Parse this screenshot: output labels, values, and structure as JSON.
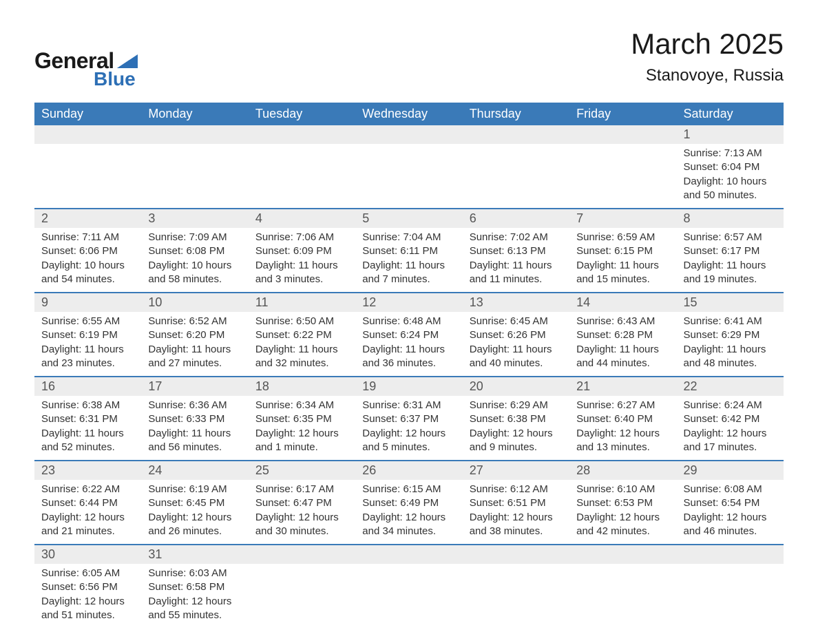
{
  "logo": {
    "word1": "General",
    "word2": "Blue",
    "text_color": "#1a1a1a",
    "accent_color": "#2d6fb5"
  },
  "title": "March 2025",
  "location": "Stanovoye, Russia",
  "colors": {
    "header_bg": "#3a7ab8",
    "header_text": "#ffffff",
    "daynum_bg": "#ededed",
    "row_border": "#3a7ab8",
    "body_text": "#333333",
    "daynum_text": "#555555",
    "page_bg": "#ffffff"
  },
  "fonts": {
    "title_size_pt": 32,
    "location_size_pt": 18,
    "header_size_pt": 14,
    "daynum_size_pt": 14,
    "detail_size_pt": 11,
    "family": "Arial"
  },
  "day_headers": [
    "Sunday",
    "Monday",
    "Tuesday",
    "Wednesday",
    "Thursday",
    "Friday",
    "Saturday"
  ],
  "weeks": [
    [
      null,
      null,
      null,
      null,
      null,
      null,
      {
        "n": "1",
        "sr": "Sunrise: 7:13 AM",
        "ss": "Sunset: 6:04 PM",
        "d1": "Daylight: 10 hours",
        "d2": "and 50 minutes."
      }
    ],
    [
      {
        "n": "2",
        "sr": "Sunrise: 7:11 AM",
        "ss": "Sunset: 6:06 PM",
        "d1": "Daylight: 10 hours",
        "d2": "and 54 minutes."
      },
      {
        "n": "3",
        "sr": "Sunrise: 7:09 AM",
        "ss": "Sunset: 6:08 PM",
        "d1": "Daylight: 10 hours",
        "d2": "and 58 minutes."
      },
      {
        "n": "4",
        "sr": "Sunrise: 7:06 AM",
        "ss": "Sunset: 6:09 PM",
        "d1": "Daylight: 11 hours",
        "d2": "and 3 minutes."
      },
      {
        "n": "5",
        "sr": "Sunrise: 7:04 AM",
        "ss": "Sunset: 6:11 PM",
        "d1": "Daylight: 11 hours",
        "d2": "and 7 minutes."
      },
      {
        "n": "6",
        "sr": "Sunrise: 7:02 AM",
        "ss": "Sunset: 6:13 PM",
        "d1": "Daylight: 11 hours",
        "d2": "and 11 minutes."
      },
      {
        "n": "7",
        "sr": "Sunrise: 6:59 AM",
        "ss": "Sunset: 6:15 PM",
        "d1": "Daylight: 11 hours",
        "d2": "and 15 minutes."
      },
      {
        "n": "8",
        "sr": "Sunrise: 6:57 AM",
        "ss": "Sunset: 6:17 PM",
        "d1": "Daylight: 11 hours",
        "d2": "and 19 minutes."
      }
    ],
    [
      {
        "n": "9",
        "sr": "Sunrise: 6:55 AM",
        "ss": "Sunset: 6:19 PM",
        "d1": "Daylight: 11 hours",
        "d2": "and 23 minutes."
      },
      {
        "n": "10",
        "sr": "Sunrise: 6:52 AM",
        "ss": "Sunset: 6:20 PM",
        "d1": "Daylight: 11 hours",
        "d2": "and 27 minutes."
      },
      {
        "n": "11",
        "sr": "Sunrise: 6:50 AM",
        "ss": "Sunset: 6:22 PM",
        "d1": "Daylight: 11 hours",
        "d2": "and 32 minutes."
      },
      {
        "n": "12",
        "sr": "Sunrise: 6:48 AM",
        "ss": "Sunset: 6:24 PM",
        "d1": "Daylight: 11 hours",
        "d2": "and 36 minutes."
      },
      {
        "n": "13",
        "sr": "Sunrise: 6:45 AM",
        "ss": "Sunset: 6:26 PM",
        "d1": "Daylight: 11 hours",
        "d2": "and 40 minutes."
      },
      {
        "n": "14",
        "sr": "Sunrise: 6:43 AM",
        "ss": "Sunset: 6:28 PM",
        "d1": "Daylight: 11 hours",
        "d2": "and 44 minutes."
      },
      {
        "n": "15",
        "sr": "Sunrise: 6:41 AM",
        "ss": "Sunset: 6:29 PM",
        "d1": "Daylight: 11 hours",
        "d2": "and 48 minutes."
      }
    ],
    [
      {
        "n": "16",
        "sr": "Sunrise: 6:38 AM",
        "ss": "Sunset: 6:31 PM",
        "d1": "Daylight: 11 hours",
        "d2": "and 52 minutes."
      },
      {
        "n": "17",
        "sr": "Sunrise: 6:36 AM",
        "ss": "Sunset: 6:33 PM",
        "d1": "Daylight: 11 hours",
        "d2": "and 56 minutes."
      },
      {
        "n": "18",
        "sr": "Sunrise: 6:34 AM",
        "ss": "Sunset: 6:35 PM",
        "d1": "Daylight: 12 hours",
        "d2": "and 1 minute."
      },
      {
        "n": "19",
        "sr": "Sunrise: 6:31 AM",
        "ss": "Sunset: 6:37 PM",
        "d1": "Daylight: 12 hours",
        "d2": "and 5 minutes."
      },
      {
        "n": "20",
        "sr": "Sunrise: 6:29 AM",
        "ss": "Sunset: 6:38 PM",
        "d1": "Daylight: 12 hours",
        "d2": "and 9 minutes."
      },
      {
        "n": "21",
        "sr": "Sunrise: 6:27 AM",
        "ss": "Sunset: 6:40 PM",
        "d1": "Daylight: 12 hours",
        "d2": "and 13 minutes."
      },
      {
        "n": "22",
        "sr": "Sunrise: 6:24 AM",
        "ss": "Sunset: 6:42 PM",
        "d1": "Daylight: 12 hours",
        "d2": "and 17 minutes."
      }
    ],
    [
      {
        "n": "23",
        "sr": "Sunrise: 6:22 AM",
        "ss": "Sunset: 6:44 PM",
        "d1": "Daylight: 12 hours",
        "d2": "and 21 minutes."
      },
      {
        "n": "24",
        "sr": "Sunrise: 6:19 AM",
        "ss": "Sunset: 6:45 PM",
        "d1": "Daylight: 12 hours",
        "d2": "and 26 minutes."
      },
      {
        "n": "25",
        "sr": "Sunrise: 6:17 AM",
        "ss": "Sunset: 6:47 PM",
        "d1": "Daylight: 12 hours",
        "d2": "and 30 minutes."
      },
      {
        "n": "26",
        "sr": "Sunrise: 6:15 AM",
        "ss": "Sunset: 6:49 PM",
        "d1": "Daylight: 12 hours",
        "d2": "and 34 minutes."
      },
      {
        "n": "27",
        "sr": "Sunrise: 6:12 AM",
        "ss": "Sunset: 6:51 PM",
        "d1": "Daylight: 12 hours",
        "d2": "and 38 minutes."
      },
      {
        "n": "28",
        "sr": "Sunrise: 6:10 AM",
        "ss": "Sunset: 6:53 PM",
        "d1": "Daylight: 12 hours",
        "d2": "and 42 minutes."
      },
      {
        "n": "29",
        "sr": "Sunrise: 6:08 AM",
        "ss": "Sunset: 6:54 PM",
        "d1": "Daylight: 12 hours",
        "d2": "and 46 minutes."
      }
    ],
    [
      {
        "n": "30",
        "sr": "Sunrise: 6:05 AM",
        "ss": "Sunset: 6:56 PM",
        "d1": "Daylight: 12 hours",
        "d2": "and 51 minutes."
      },
      {
        "n": "31",
        "sr": "Sunrise: 6:03 AM",
        "ss": "Sunset: 6:58 PM",
        "d1": "Daylight: 12 hours",
        "d2": "and 55 minutes."
      },
      null,
      null,
      null,
      null,
      null
    ]
  ]
}
